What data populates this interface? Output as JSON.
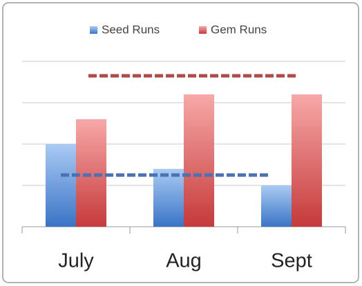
{
  "chart_data": {
    "type": "bar",
    "categories": [
      "July",
      "Aug",
      "Sept"
    ],
    "series": [
      {
        "name": "Seed Runs",
        "color": "#4f81bd",
        "values": [
          2,
          1.4,
          1
        ]
      },
      {
        "name": "Gem Runs",
        "color": "#c0504d",
        "values": [
          2.6,
          3.2,
          3.2
        ]
      }
    ],
    "reference_lines": [
      {
        "value": 3.65,
        "color": "#b34a4a"
      },
      {
        "value": 1.25,
        "color": "#4a72b2"
      }
    ],
    "ylim": [
      0,
      4
    ],
    "yticks": [
      0,
      1,
      2,
      3,
      4
    ],
    "grid": true
  }
}
